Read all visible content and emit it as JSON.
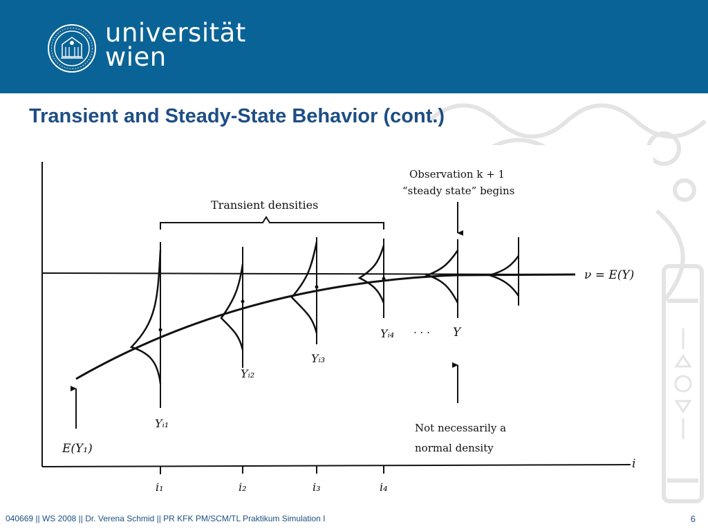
{
  "header": {
    "logo_line1": "universität",
    "logo_line2": "wien",
    "bg_color": "#0a6396"
  },
  "title": "Transient and Steady-State Behavior (cont.)",
  "figure": {
    "bracket_label": "Transient densities",
    "obs_label_line1": "Observation k + 1",
    "obs_label_line2": "“steady state” begins",
    "mean_label": "ν = E(Y)",
    "initial_label": "E(Y₁)",
    "y_labels": [
      "Yᵢ₁",
      "Yᵢ₂",
      "Yᵢ₃",
      "Yᵢ₄"
    ],
    "dots": "· · ·",
    "steady_y_label": "Y",
    "note_line1": "Not necessarily a",
    "note_line2": "normal density",
    "axis_label": "i",
    "tick_labels": [
      "i₁",
      "i₂",
      "i₃",
      "i₄"
    ]
  },
  "footer": {
    "text": "040669 || WS 2008 || Dr. Verena Schmid || PR KFK PM/SCM/TL Praktikum Simulation I",
    "page": "6"
  },
  "colors": {
    "title": "#1d4e84",
    "footer": "#1d4e84",
    "ink": "#111111",
    "ornament": "#e4e4e4"
  }
}
